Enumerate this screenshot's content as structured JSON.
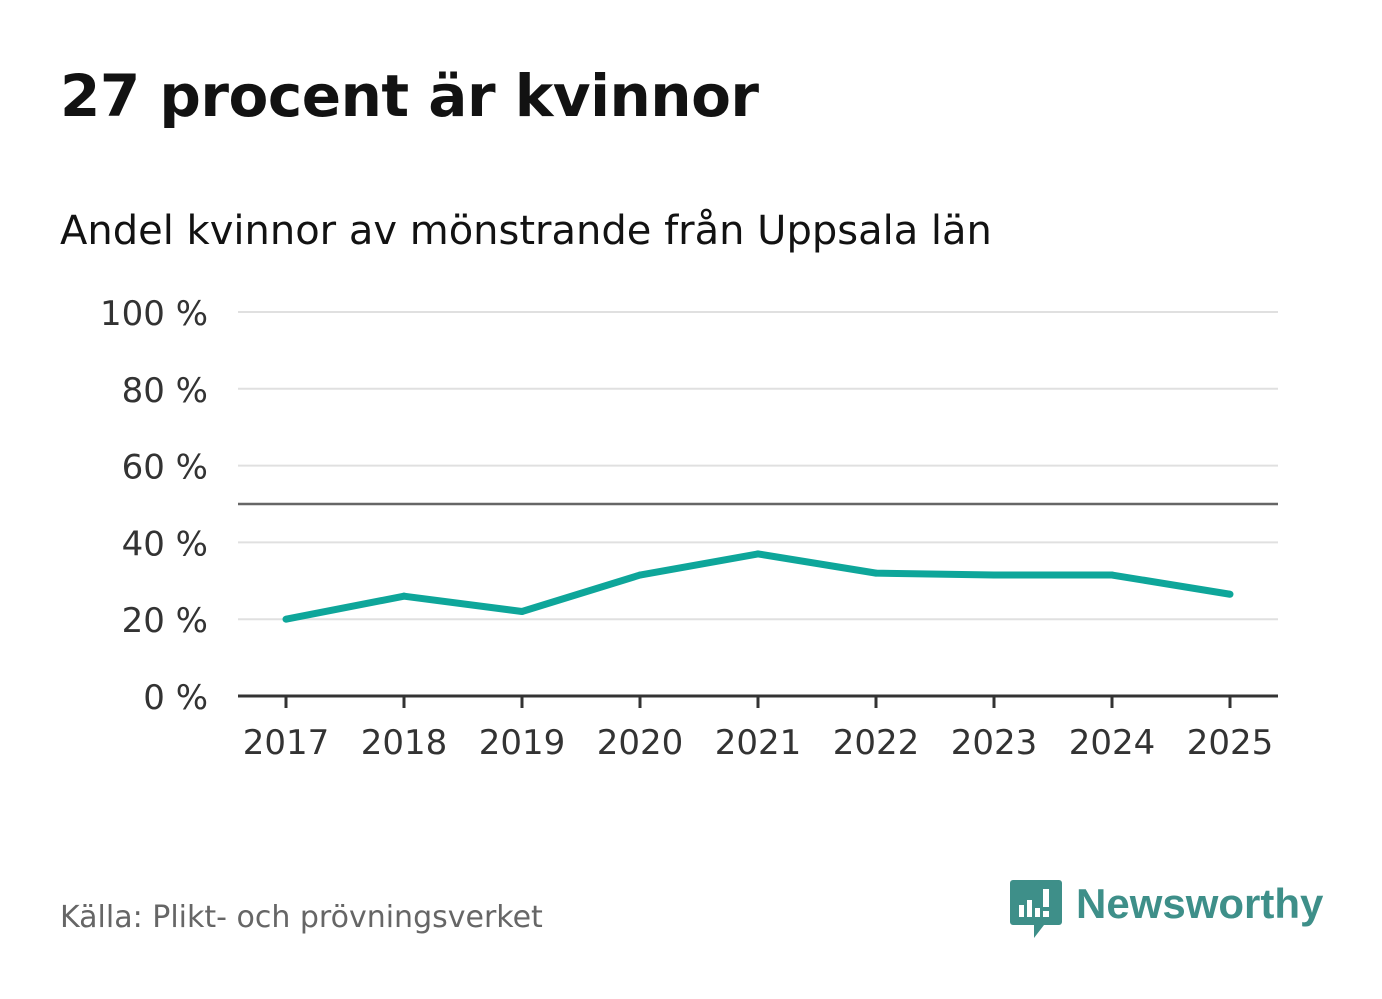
{
  "title": "27 procent är kvinnor",
  "subtitle": "Andel kvinnor av mönstrande från Uppsala län",
  "source": "Källa: Plikt- och prövningsverket",
  "brand": {
    "name": "Newsworthy",
    "color": "#3e8f89",
    "icon": "newsworthy-logo-icon"
  },
  "chart_data": {
    "type": "line",
    "title": "27 procent är kvinnor",
    "subtitle": "Andel kvinnor av mönstrande från Uppsala län",
    "xlabel": "",
    "ylabel": "",
    "categories": [
      "2017",
      "2018",
      "2019",
      "2020",
      "2021",
      "2022",
      "2023",
      "2024",
      "2025"
    ],
    "series": [
      {
        "name": "Andel kvinnor",
        "color": "#0ea69a",
        "values": [
          20,
          26,
          22,
          31.5,
          37,
          32,
          31.5,
          31.5,
          26.5
        ]
      }
    ],
    "ylim": [
      0,
      100
    ],
    "yticks": [
      0,
      20,
      40,
      60,
      80,
      100
    ],
    "ytick_labels": [
      "0 %",
      "20 %",
      "40 %",
      "60 %",
      "80 %",
      "100 %"
    ],
    "reference_line": 50,
    "grid": true,
    "legend": "none"
  }
}
